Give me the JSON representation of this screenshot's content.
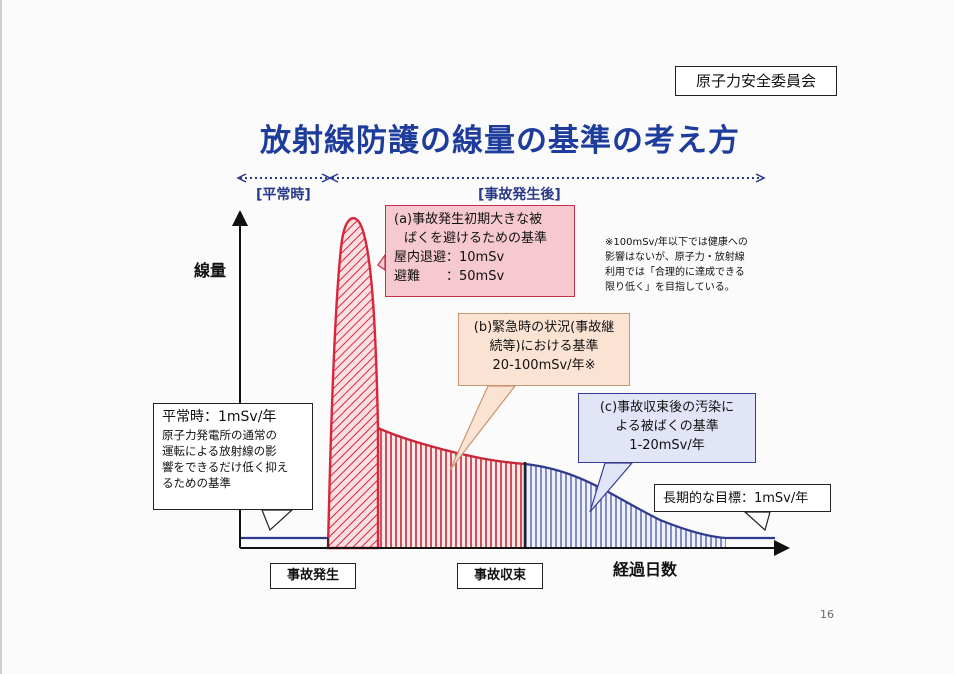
{
  "organization": "原子力安全委員会",
  "title": "放射線防護の線量の基準の考え方",
  "ranges": {
    "normal": "[平常時]",
    "after_accident": "[事故発生後]"
  },
  "axes": {
    "y_label": "線量",
    "x_label": "経過日数"
  },
  "box_a": {
    "line1": "(a)事故発生初期大きな被",
    "line2": "ばくを避けるための基準",
    "line3": "屋内退避：10mSv",
    "line4": "避難　　：50mSv"
  },
  "box_b": {
    "line1": "(b)緊急時の状況(事故継",
    "line2": "続等)における基準",
    "line3": "20-100mSv/年※"
  },
  "box_c": {
    "line1": "(c)事故収束後の汚染に",
    "line2": "よる被ばくの基準",
    "line3": "1-20mSv/年"
  },
  "normal_box": {
    "heading": "平常時：1mSv/年",
    "line1": "原子力発電所の通常の",
    "line2": "運転による放射線の影",
    "line3": "響をできるだけ低く抑え",
    "line4": "るための基準"
  },
  "goal_box": "長期的な目標：1mSv/年",
  "events": {
    "accident": "事故発生",
    "convergence": "事故収束"
  },
  "note": {
    "line1": "※100mSv/年以下では健康への",
    "line2": "影響はないが、原子力・放射線",
    "line3": "利用では「合理的に達成できる",
    "line4": "限り低く」を目指している。"
  },
  "page_number": "16",
  "colors": {
    "title": "#1e3c9c",
    "phase_a": "#d9263b",
    "phase_b": "#c8283a",
    "phase_c": "#2e3a8c"
  }
}
